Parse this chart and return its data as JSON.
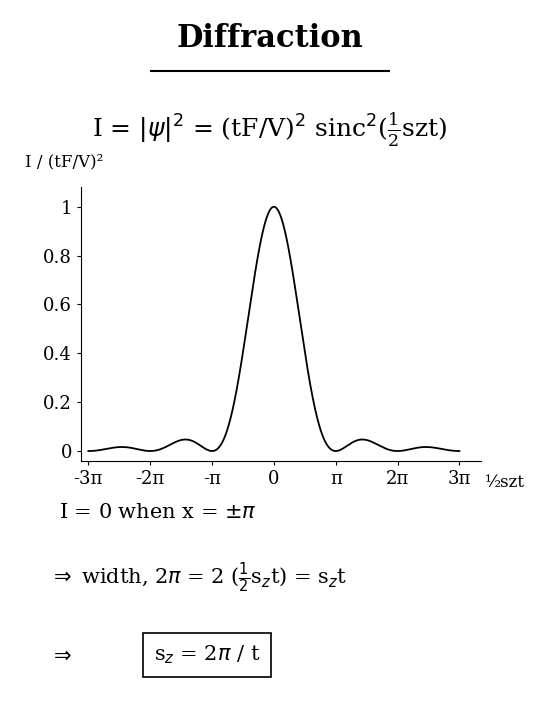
{
  "title": "Diffraction",
  "ylabel": "I / (tF/V)²",
  "xlabel_right": "½szt",
  "yticks": [
    0,
    0.2,
    0.4,
    0.6,
    0.8,
    1
  ],
  "xtick_labels": [
    "-3π",
    "-2π",
    "-π",
    "0",
    "π",
    "2π",
    "3π"
  ],
  "xlim": [
    -9.8,
    10.5
  ],
  "ylim": [
    -0.04,
    1.08
  ],
  "bg_color": "#ffffff",
  "line_color": "#000000",
  "font_size_title": 22,
  "font_size_formula": 18,
  "font_size_axis": 13,
  "font_size_text": 15
}
